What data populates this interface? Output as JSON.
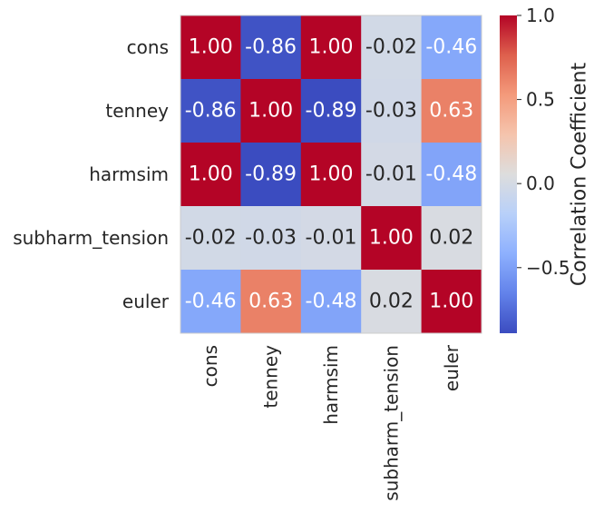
{
  "chart_data": {
    "type": "heatmap",
    "row_labels": [
      "cons",
      "tenney",
      "harmsim",
      "subharm_tension",
      "euler"
    ],
    "col_labels": [
      "cons",
      "tenney",
      "harmsim",
      "subharm_tension",
      "euler"
    ],
    "values": [
      [
        1.0,
        -0.86,
        1.0,
        -0.02,
        -0.46
      ],
      [
        -0.86,
        1.0,
        -0.89,
        -0.03,
        0.63
      ],
      [
        1.0,
        -0.89,
        1.0,
        -0.01,
        -0.48
      ],
      [
        -0.02,
        -0.03,
        -0.01,
        1.0,
        0.02
      ],
      [
        -0.46,
        0.63,
        -0.48,
        0.02,
        1.0
      ]
    ],
    "cell_text": [
      [
        "1.00",
        "-0.86",
        "1.00",
        "-0.02",
        "-0.46"
      ],
      [
        "-0.86",
        "1.00",
        "-0.89",
        "-0.03",
        "0.63"
      ],
      [
        "1.00",
        "-0.89",
        "1.00",
        "-0.01",
        "-0.48"
      ],
      [
        "-0.02",
        "-0.03",
        "-0.01",
        "1.00",
        "0.02"
      ],
      [
        "-0.46",
        "0.63",
        "-0.48",
        "0.02",
        "1.00"
      ]
    ],
    "colormap": "coolwarm",
    "vmin": -0.89,
    "vmax": 1.0,
    "colorbar": {
      "label": "Correlation Coefficient",
      "ticks": [
        1.0,
        0.5,
        0.0,
        -0.5
      ],
      "tick_labels": [
        "1.0",
        "0.5",
        "0.0",
        "−0.5"
      ]
    },
    "grid": false,
    "colors": {
      "text_dark": "#262626",
      "text_light": "#ffffff"
    }
  }
}
